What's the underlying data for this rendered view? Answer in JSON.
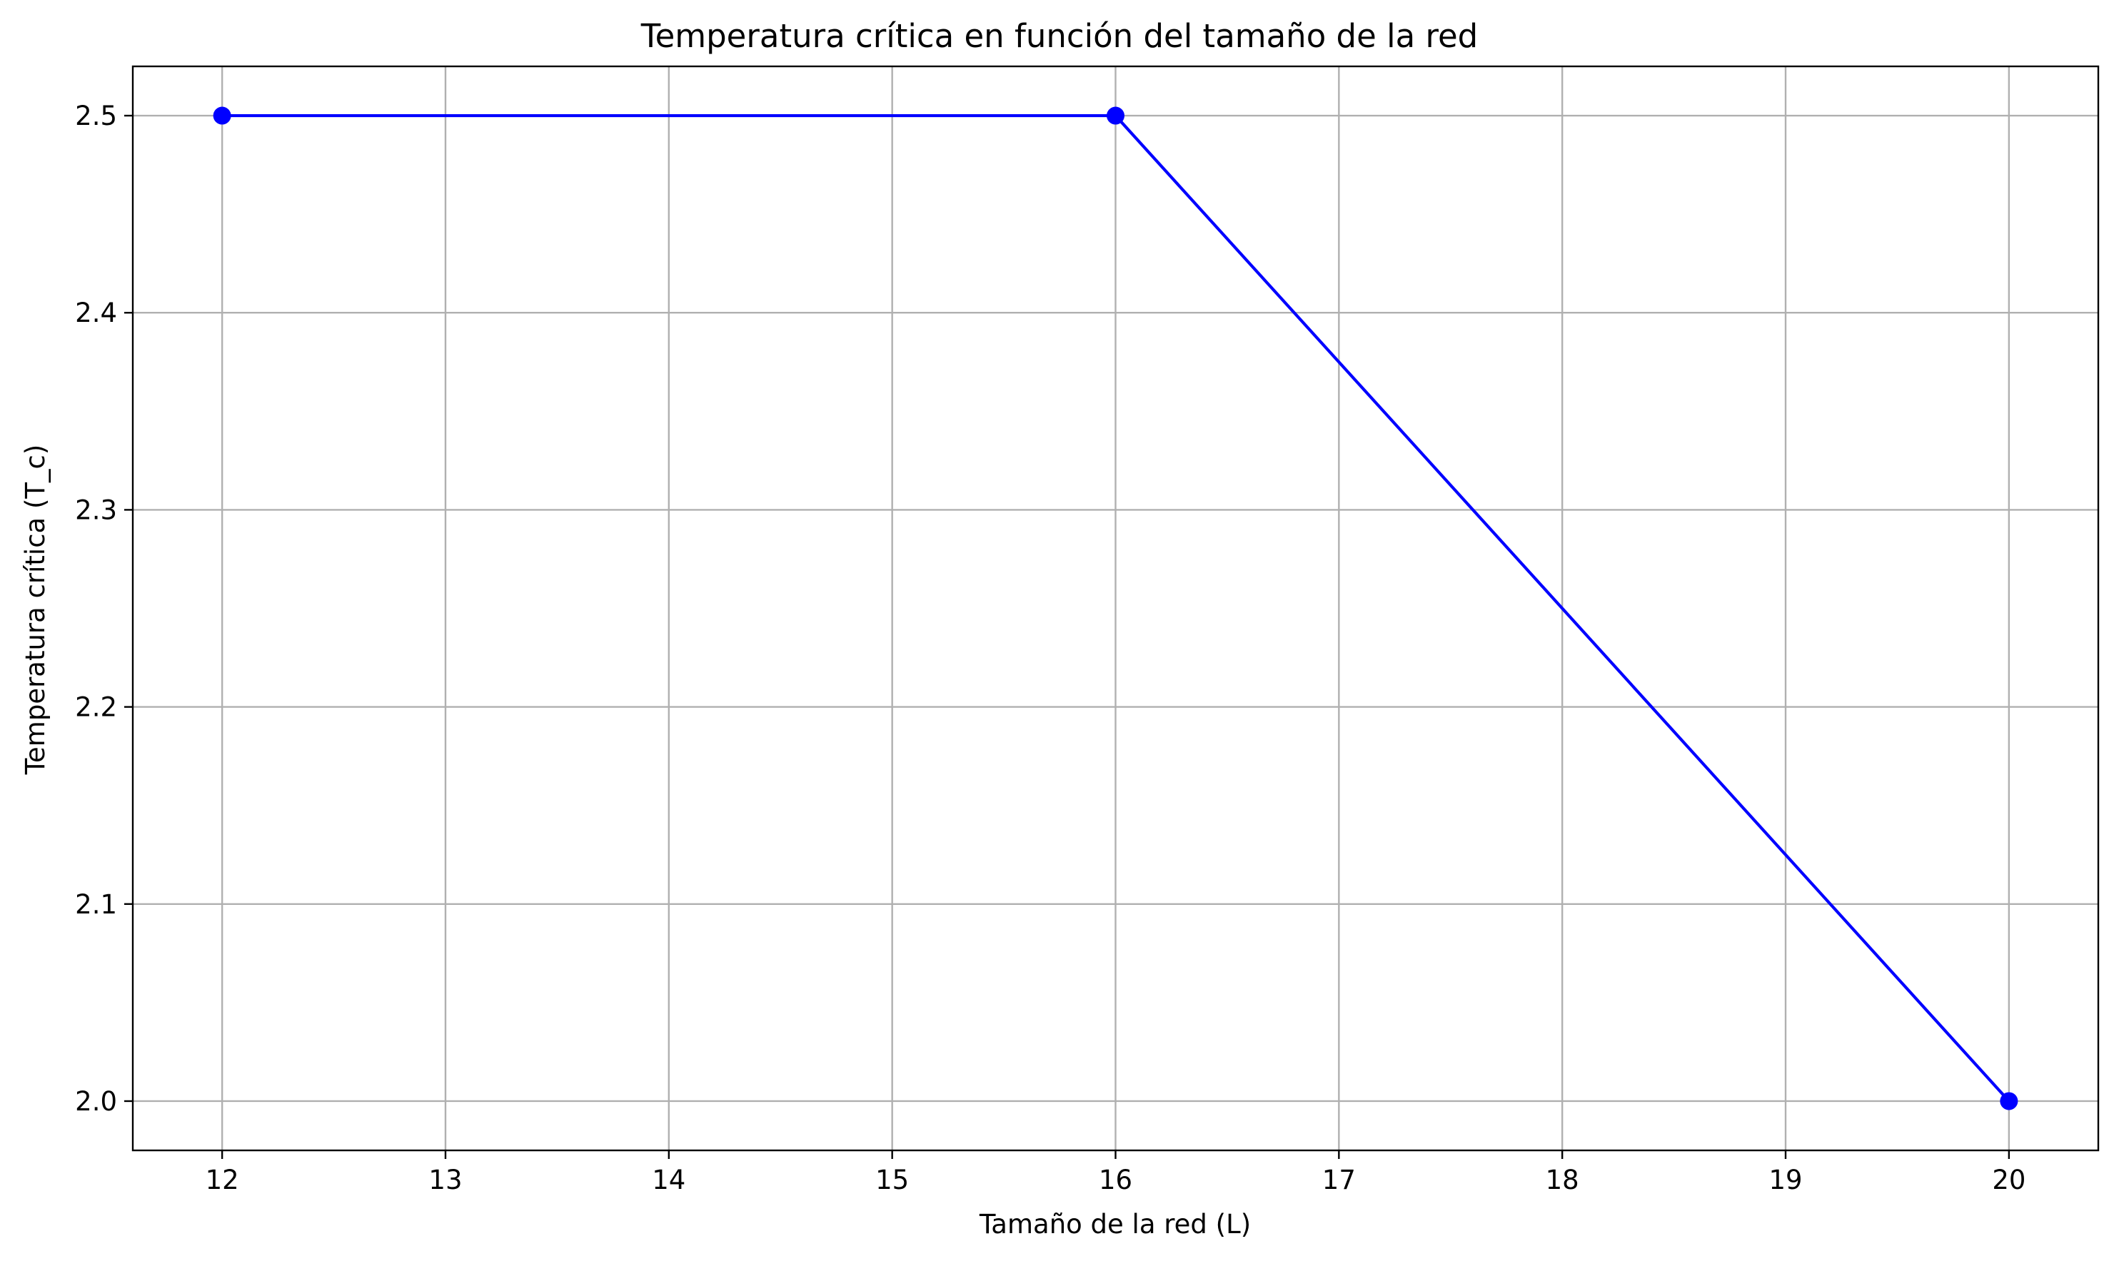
{
  "chart_data": {
    "type": "line",
    "title": "Temperatura crítica en función del tamaño de la red",
    "xlabel": "Tamaño de la red (L)",
    "ylabel": "Temperatura crítica (T_c)",
    "xlim": [
      11.6,
      20.4
    ],
    "ylim": [
      1.975,
      2.525
    ],
    "x_ticks": [
      12,
      13,
      14,
      15,
      16,
      17,
      18,
      19,
      20
    ],
    "y_ticks": [
      2.0,
      2.1,
      2.2,
      2.3,
      2.4,
      2.5
    ],
    "x_tick_labels": [
      "12",
      "13",
      "14",
      "15",
      "16",
      "17",
      "18",
      "19",
      "20"
    ],
    "y_tick_labels": [
      "2.0",
      "2.1",
      "2.2",
      "2.3",
      "2.4",
      "2.5"
    ],
    "grid": true,
    "series": [
      {
        "x": [
          12,
          16,
          20
        ],
        "values": [
          2.5,
          2.5,
          2.0
        ],
        "color": "#0000ff",
        "marker": "circle"
      }
    ]
  }
}
